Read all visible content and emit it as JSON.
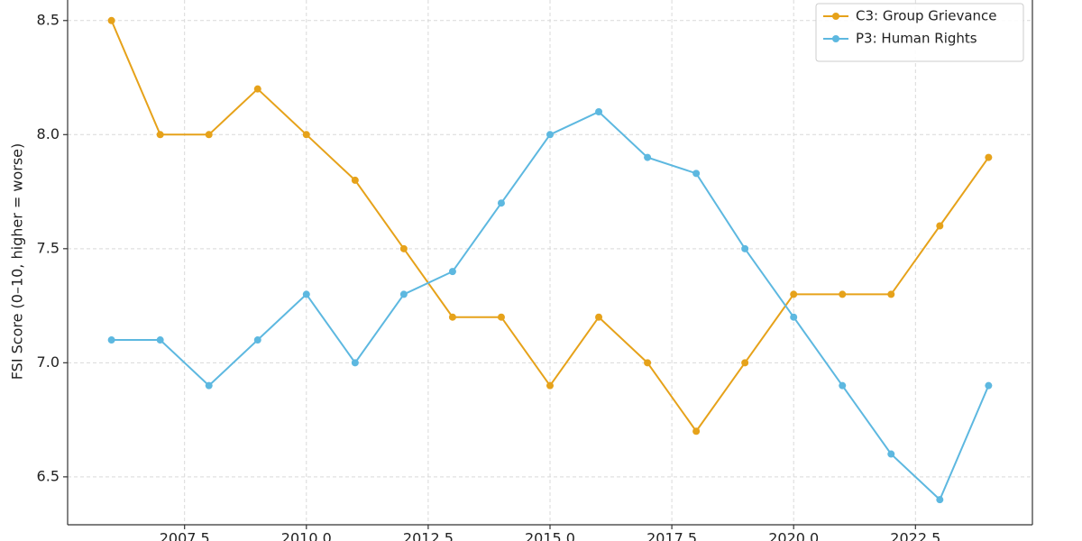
{
  "chart_data": {
    "type": "line",
    "y_label": "FSI Score (0–10, higher = worse)",
    "x": [
      2006,
      2007,
      2008,
      2009,
      2010,
      2011,
      2012,
      2013,
      2014,
      2015,
      2016,
      2017,
      2018,
      2019,
      2020,
      2021,
      2022,
      2023,
      2024
    ],
    "series": [
      {
        "name": "C3: Group Grievance",
        "color": "#e6a21a",
        "values": [
          8.5,
          8.0,
          8.0,
          8.2,
          8.0,
          7.8,
          7.5,
          7.2,
          7.2,
          6.9,
          7.2,
          7.0,
          6.7,
          7.0,
          7.3,
          7.3,
          7.3,
          7.6,
          7.9
        ]
      },
      {
        "name": "P3: Human Rights",
        "color": "#5db8e0",
        "values": [
          7.1,
          7.1,
          6.9,
          7.1,
          7.3,
          7.0,
          7.3,
          7.4,
          7.7,
          8.0,
          8.1,
          7.9,
          7.83,
          7.5,
          7.2,
          6.9,
          6.6,
          6.4,
          6.9
        ]
      }
    ],
    "xlim": [
      2005.1,
      2024.9
    ],
    "ylim": [
      6.29,
      8.59
    ],
    "xticks": [
      2007.5,
      {
        "value": 2010,
        "label": "2010.0"
      },
      2012.5,
      {
        "value": 2015,
        "label": "2015.0"
      },
      2017.5,
      {
        "value": 2020,
        "label": "2020.0"
      },
      2022.5
    ],
    "yticks": [
      {
        "value": 6.5,
        "label": "6.5"
      },
      {
        "value": 7,
        "label": "7.0"
      },
      7.5,
      {
        "value": 8,
        "label": "8.0"
      },
      8.5
    ],
    "grid": true,
    "legend": "upper right"
  }
}
